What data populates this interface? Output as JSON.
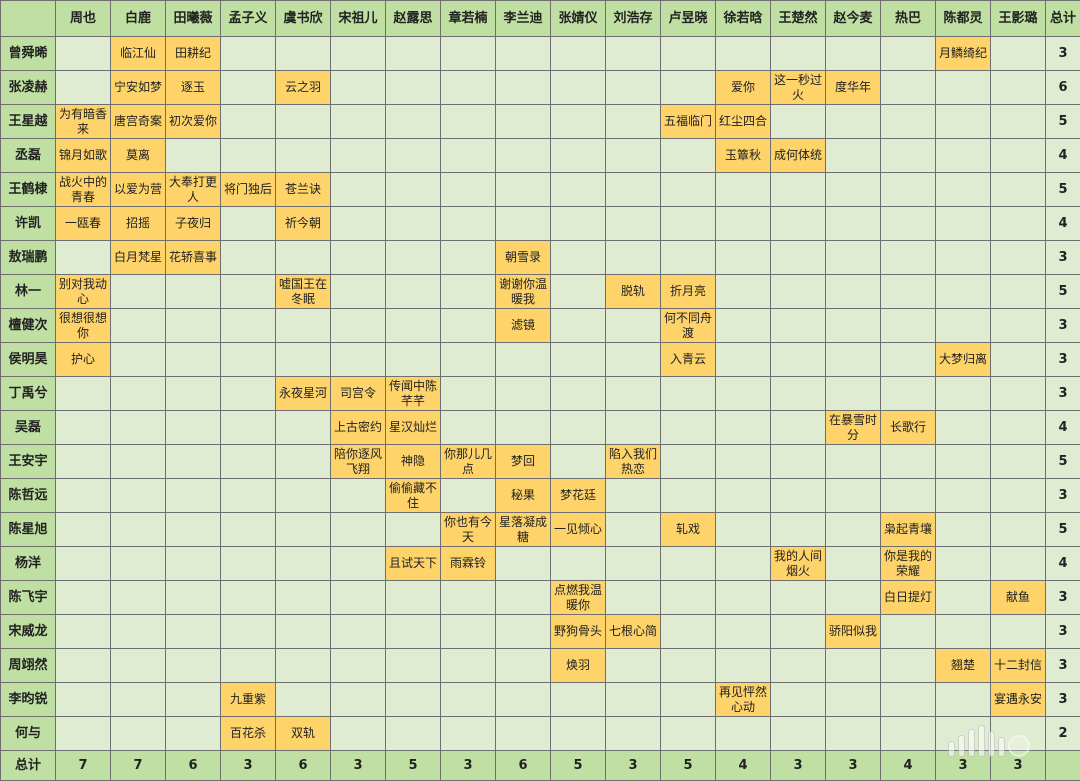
{
  "table": {
    "columns": [
      "周也",
      "白鹿",
      "田曦薇",
      "孟子义",
      "虞书欣",
      "宋祖儿",
      "赵露思",
      "章若楠",
      "李兰迪",
      "张婧仪",
      "刘浩存",
      "卢昱晓",
      "徐若晗",
      "王楚然",
      "赵今麦",
      "热巴",
      "陈都灵",
      "王影璐"
    ],
    "total_label": "总计",
    "rows": [
      {
        "actor": "曾舜晞",
        "cells": [
          "",
          "临江仙",
          "田耕纪",
          "",
          "",
          "",
          "",
          "",
          "",
          "",
          "",
          "",
          "",
          "",
          "",
          "",
          "月鳞绮纪",
          ""
        ],
        "total": "3"
      },
      {
        "actor": "张凌赫",
        "cells": [
          "",
          "宁安如梦",
          "逐玉",
          "",
          "云之羽",
          "",
          "",
          "",
          "",
          "",
          "",
          "",
          "爱你",
          "这一秒过火",
          "度华年",
          "",
          "",
          ""
        ],
        "total": "6"
      },
      {
        "actor": "王星越",
        "cells": [
          "为有暗香来",
          "唐宫奇案",
          "初次爱你",
          "",
          "",
          "",
          "",
          "",
          "",
          "",
          "",
          "五福临门",
          "红尘四合",
          "",
          "",
          "",
          "",
          ""
        ],
        "total": "5"
      },
      {
        "actor": "丞磊",
        "cells": [
          "锦月如歌",
          "莫离",
          "",
          "",
          "",
          "",
          "",
          "",
          "",
          "",
          "",
          "",
          "玉簟秋",
          "成何体统",
          "",
          "",
          "",
          ""
        ],
        "total": "4"
      },
      {
        "actor": "王鹤棣",
        "cells": [
          "战火中的青春",
          "以爱为营",
          "大奉打更人",
          "将门独后",
          "苍兰诀",
          "",
          "",
          "",
          "",
          "",
          "",
          "",
          "",
          "",
          "",
          "",
          "",
          ""
        ],
        "total": "5"
      },
      {
        "actor": "许凯",
        "cells": [
          "一瓯春",
          "招摇",
          "子夜归",
          "",
          "祈今朝",
          "",
          "",
          "",
          "",
          "",
          "",
          "",
          "",
          "",
          "",
          "",
          "",
          ""
        ],
        "total": "4"
      },
      {
        "actor": "敖瑞鹏",
        "cells": [
          "",
          "白月梵星",
          "花轿喜事",
          "",
          "",
          "",
          "",
          "",
          "朝雪录",
          "",
          "",
          "",
          "",
          "",
          "",
          "",
          "",
          ""
        ],
        "total": "3"
      },
      {
        "actor": "林一",
        "cells": [
          "别对我动心",
          "",
          "",
          "",
          "嘘国王在冬眠",
          "",
          "",
          "",
          "谢谢你温暖我",
          "",
          "脱轨",
          "折月亮",
          "",
          "",
          "",
          "",
          "",
          ""
        ],
        "total": "5"
      },
      {
        "actor": "檀健次",
        "cells": [
          "很想很想你",
          "",
          "",
          "",
          "",
          "",
          "",
          "",
          "滤镜",
          "",
          "",
          "何不同舟渡",
          "",
          "",
          "",
          "",
          "",
          ""
        ],
        "total": "3"
      },
      {
        "actor": "侯明昊",
        "cells": [
          "护心",
          "",
          "",
          "",
          "",
          "",
          "",
          "",
          "",
          "",
          "",
          "入青云",
          "",
          "",
          "",
          "",
          "大梦归离",
          ""
        ],
        "total": "3"
      },
      {
        "actor": "丁禹兮",
        "cells": [
          "",
          "",
          "",
          "",
          "永夜星河",
          "司宫令",
          "传闻中陈芊芊",
          "",
          "",
          "",
          "",
          "",
          "",
          "",
          "",
          "",
          "",
          ""
        ],
        "total": "3"
      },
      {
        "actor": "吴磊",
        "cells": [
          "",
          "",
          "",
          "",
          "",
          "上古密约",
          "星汉灿烂",
          "",
          "",
          "",
          "",
          "",
          "",
          "",
          "在暴雪时分",
          "长歌行",
          "",
          ""
        ],
        "total": "4"
      },
      {
        "actor": "王安宇",
        "cells": [
          "",
          "",
          "",
          "",
          "",
          "陪你逐风飞翔",
          "神隐",
          "你那儿几点",
          "梦回",
          "",
          "陷入我们热恋",
          "",
          "",
          "",
          "",
          "",
          "",
          ""
        ],
        "total": "5"
      },
      {
        "actor": "陈哲远",
        "cells": [
          "",
          "",
          "",
          "",
          "",
          "",
          "偷偷藏不住",
          "",
          "秘果",
          "梦花廷",
          "",
          "",
          "",
          "",
          "",
          "",
          "",
          ""
        ],
        "total": "3"
      },
      {
        "actor": "陈星旭",
        "cells": [
          "",
          "",
          "",
          "",
          "",
          "",
          "",
          "你也有今天",
          "星落凝成糖",
          "一见倾心",
          "",
          "轧戏",
          "",
          "",
          "",
          "枭起青壤",
          "",
          ""
        ],
        "total": "5"
      },
      {
        "actor": "杨洋",
        "cells": [
          "",
          "",
          "",
          "",
          "",
          "",
          "且试天下",
          "雨霖铃",
          "",
          "",
          "",
          "",
          "",
          "我的人间烟火",
          "",
          "你是我的荣耀",
          "",
          ""
        ],
        "total": "4"
      },
      {
        "actor": "陈飞宇",
        "cells": [
          "",
          "",
          "",
          "",
          "",
          "",
          "",
          "",
          "",
          "点燃我温暖你",
          "",
          "",
          "",
          "",
          "",
          "白日提灯",
          "",
          "献鱼"
        ],
        "total": "3"
      },
      {
        "actor": "宋威龙",
        "cells": [
          "",
          "",
          "",
          "",
          "",
          "",
          "",
          "",
          "",
          "野狗骨头",
          "七根心简",
          "",
          "",
          "",
          "骄阳似我",
          "",
          "",
          ""
        ],
        "total": "3"
      },
      {
        "actor": "周翊然",
        "cells": [
          "",
          "",
          "",
          "",
          "",
          "",
          "",
          "",
          "",
          "焕羽",
          "",
          "",
          "",
          "",
          "",
          "",
          "翘楚",
          "十二封信"
        ],
        "total": "3"
      },
      {
        "actor": "李昀锐",
        "cells": [
          "",
          "",
          "",
          "九重紫",
          "",
          "",
          "",
          "",
          "",
          "",
          "",
          "",
          "再见怦然心动",
          "",
          "",
          "",
          "",
          "宴遇永安"
        ],
        "total": "3"
      },
      {
        "actor": "何与",
        "cells": [
          "",
          "",
          "",
          "百花杀",
          "双轨",
          "",
          "",
          "",
          "",
          "",
          "",
          "",
          "",
          "",
          "",
          "",
          "",
          ""
        ],
        "total": "2"
      }
    ],
    "column_totals": [
      "7",
      "7",
      "6",
      "3",
      "6",
      "3",
      "5",
      "3",
      "6",
      "5",
      "3",
      "5",
      "4",
      "3",
      "3",
      "4",
      "3",
      "3"
    ]
  }
}
